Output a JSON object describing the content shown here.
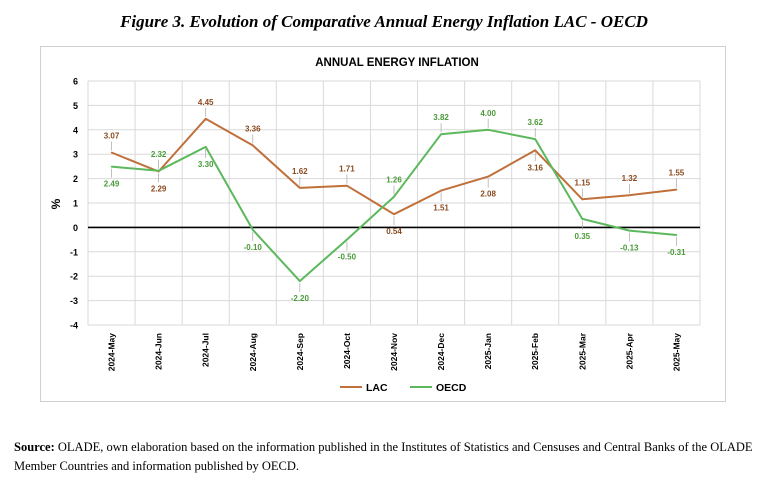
{
  "figure_title": "Figure 3. Evolution of Comparative Annual Energy Inflation LAC - OECD",
  "source": {
    "label": "Source:",
    "text": "OLADE, own elaboration based on the information published in the Institutes of Statistics and Censuses and Central Banks of the OLADE Member Countries and information published by OECD."
  },
  "chart_data": {
    "type": "line",
    "title": "ANNUAL ENERGY INFLATION",
    "ylabel": "%",
    "xlabel": "",
    "ylim": [
      -4,
      6
    ],
    "yticks": [
      6,
      5,
      4,
      3,
      2,
      1,
      0,
      -1,
      -2,
      -3,
      -4
    ],
    "grid": true,
    "legend_position": "bottom",
    "categories": [
      "2024-May",
      "2024-Jun",
      "2024-Jul",
      "2024-Aug",
      "2024-Sep",
      "2024-Oct",
      "2024-Nov",
      "2024-Dec",
      "2025-Jan",
      "2025-Feb",
      "2025-Mar",
      "2025-Apr",
      "2025-May"
    ],
    "series": [
      {
        "name": "LAC",
        "color": "#c0703a",
        "values": [
          3.07,
          2.29,
          4.45,
          3.36,
          1.62,
          1.71,
          0.54,
          1.51,
          2.08,
          3.16,
          1.15,
          1.32,
          1.55
        ],
        "labels": [
          "3.07",
          "2.29",
          "4.45",
          "3.36",
          "1.62",
          "1.71",
          "0.54",
          "1.51",
          "2.08",
          "3.16",
          "1.15",
          "1.32",
          "1.55"
        ]
      },
      {
        "name": "OECD",
        "color": "#5cb85c",
        "values": [
          2.49,
          2.32,
          3.3,
          -0.1,
          -2.2,
          -0.5,
          1.26,
          3.82,
          4.0,
          3.62,
          0.35,
          -0.13,
          -0.31
        ],
        "labels": [
          "2.49",
          "2.32",
          "3.30",
          "-0.10",
          "-2.20",
          "-0.50",
          "1.26",
          "3.82",
          "4.00",
          "3.62",
          "0.35",
          "-0.13",
          "-0.31"
        ]
      }
    ]
  }
}
